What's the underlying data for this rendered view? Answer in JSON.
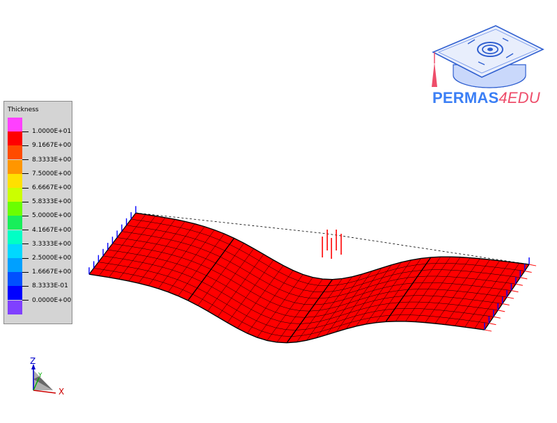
{
  "legend": {
    "title": "Thickness",
    "colors": [
      "#ff40ff",
      "#ff0000",
      "#ff4b00",
      "#ff9600",
      "#ffe000",
      "#cbff00",
      "#6bff00",
      "#18ee5a",
      "#00ffc5",
      "#00d8ff",
      "#00a0ff",
      "#0050ff",
      "#0000ff",
      "#8040ff"
    ],
    "labels": [
      "1.0000E+01",
      "9.1667E+00",
      "8.3333E+00",
      "7.5000E+00",
      "6.6667E+00",
      "5.8333E+00",
      "5.0000E+00",
      "4.1667E+00",
      "3.3333E+00",
      "2.5000E+00",
      "1.6667E+00",
      "8.3333E-01",
      "0.0000E+00"
    ]
  },
  "logo": {
    "brand": "PERMAS",
    "suffix": "4EDU"
  },
  "triad": {
    "z": "Z",
    "y": "Y",
    "x": "X"
  },
  "colors": {
    "mesh": "#ff0000",
    "mesh_line": "#000000",
    "support": "#0000ff",
    "load": "#ff0000"
  }
}
